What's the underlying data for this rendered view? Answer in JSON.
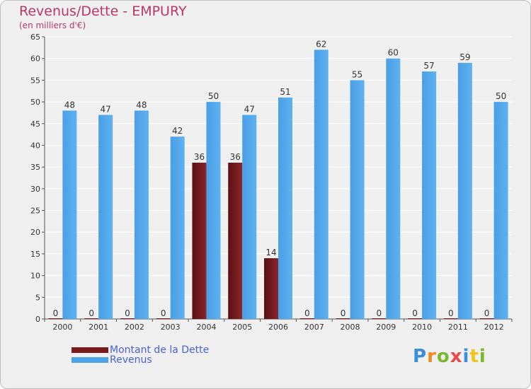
{
  "header": {
    "title": "Revenus/Dette - EMPURY",
    "subtitle": "(en milliers d'€)"
  },
  "legend": {
    "debt_label": "Montant de la Dette",
    "revenue_label": "Revenus"
  },
  "logo": {
    "text": "Proxiti"
  },
  "colors": {
    "debt": "#7a1a1e",
    "revenue": "#4ba3e8",
    "grid": "#ffffff",
    "background": "#f0f0f0"
  },
  "chart_data": {
    "type": "bar",
    "title": "Revenus/Dette - EMPURY",
    "subtitle": "(en milliers d'€)",
    "xlabel": "",
    "ylabel": "",
    "ylim": [
      0,
      65
    ],
    "yticks": [
      0,
      5,
      10,
      15,
      20,
      25,
      30,
      35,
      40,
      45,
      50,
      55,
      60,
      65
    ],
    "grid": true,
    "legend_position": "bottom-left",
    "categories": [
      "2000",
      "2001",
      "2002",
      "2003",
      "2004",
      "2005",
      "2006",
      "2007",
      "2008",
      "2009",
      "2010",
      "2011",
      "2012"
    ],
    "series": [
      {
        "name": "Montant de la Dette",
        "values": [
          0,
          0,
          0,
          0,
          36,
          36,
          14,
          0,
          0,
          0,
          0,
          0,
          0
        ]
      },
      {
        "name": "Revenus",
        "values": [
          48,
          47,
          48,
          42,
          50,
          47,
          51,
          62,
          55,
          60,
          57,
          59,
          50
        ]
      }
    ]
  }
}
